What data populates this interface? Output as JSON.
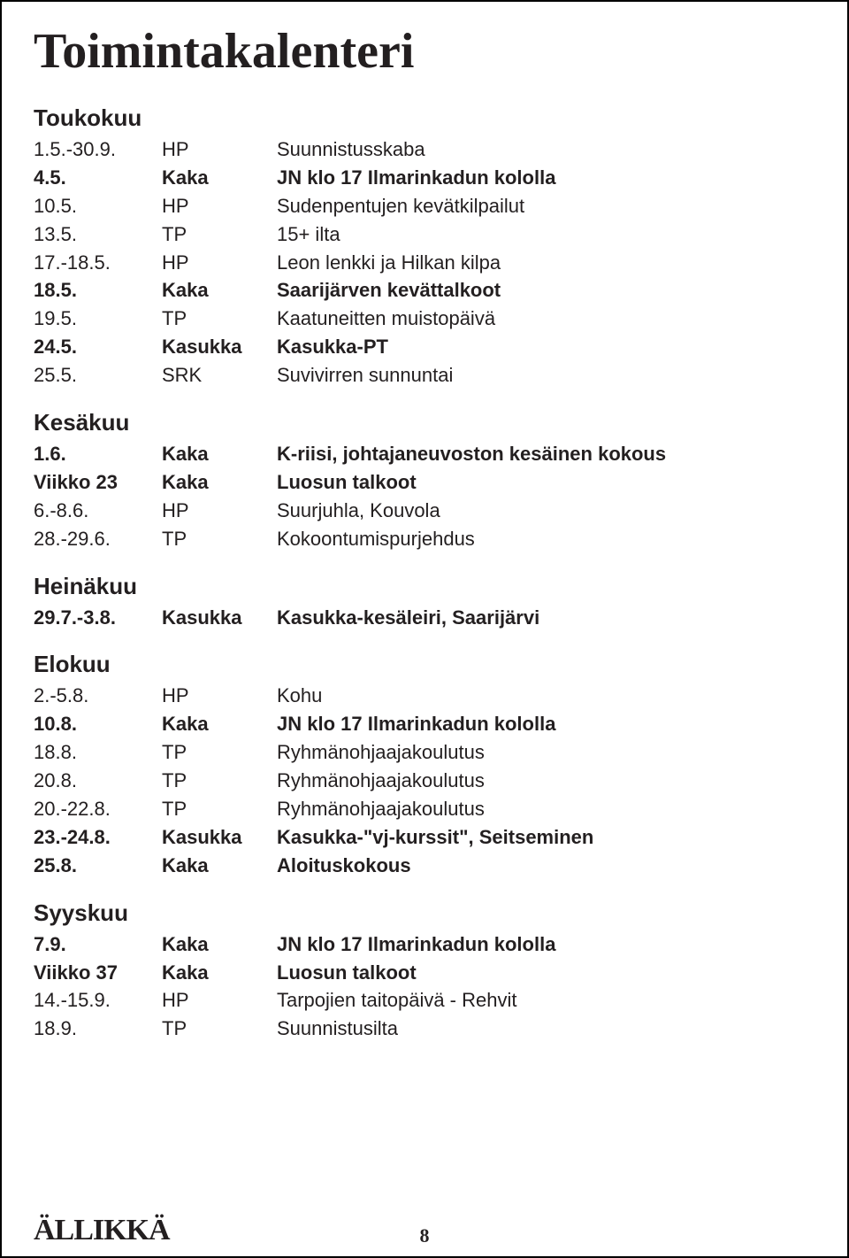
{
  "title": "Toimintakalenteri",
  "footer": {
    "brand": "ÄLLIKKÄ",
    "page": "8"
  },
  "sections": [
    {
      "month": "Toukokuu",
      "rows": [
        {
          "date": "1.5.-30.9.",
          "org": "HP",
          "desc": "Suunnistusskaba"
        },
        {
          "date": "4.5.",
          "org": "Kaka",
          "desc": "JN klo 17 Ilmarinkadun kololla",
          "bold": true
        },
        {
          "date": "10.5.",
          "org": "HP",
          "desc": "Sudenpentujen kevätkilpailut"
        },
        {
          "date": "13.5.",
          "org": "TP",
          "desc": "15+ ilta"
        },
        {
          "date": "17.-18.5.",
          "org": "HP",
          "desc": "Leon lenkki ja Hilkan kilpa"
        },
        {
          "date": "18.5.",
          "org": "Kaka",
          "desc": "Saarijärven kevättalkoot",
          "bold": true
        },
        {
          "date": "19.5.",
          "org": "TP",
          "desc": "Kaatuneitten muistopäivä"
        },
        {
          "date": "24.5.",
          "org": "Kasukka",
          "desc": "Kasukka-PT",
          "bold": true
        },
        {
          "date": "25.5.",
          "org": "SRK",
          "desc": "Suvivirren sunnuntai"
        }
      ]
    },
    {
      "month": "Kesäkuu",
      "rows": [
        {
          "date": "1.6.",
          "org": "Kaka",
          "desc": "K-riisi, johtajaneuvoston kesäinen kokous",
          "bold": true
        },
        {
          "date": "Viikko 23",
          "org": "Kaka",
          "desc": "Luosun talkoot",
          "bold": true
        },
        {
          "date": "6.-8.6.",
          "org": "HP",
          "desc": "Suurjuhla, Kouvola"
        },
        {
          "date": "28.-29.6.",
          "org": "TP",
          "desc": "Kokoontumispurjehdus"
        }
      ]
    },
    {
      "month": "Heinäkuu",
      "rows": [
        {
          "date": "29.7.-3.8.",
          "org": "Kasukka",
          "desc": "Kasukka-kesäleiri, Saarijärvi",
          "bold": true
        }
      ]
    },
    {
      "month": "Elokuu",
      "rows": [
        {
          "date": "2.-5.8.",
          "org": "HP",
          "desc": "Kohu"
        },
        {
          "date": "10.8.",
          "org": "Kaka",
          "desc": "JN klo 17 Ilmarinkadun kololla",
          "bold": true
        },
        {
          "date": "18.8.",
          "org": "TP",
          "desc": "Ryhmänohjaajakoulutus"
        },
        {
          "date": "20.8.",
          "org": "TP",
          "desc": "Ryhmänohjaajakoulutus"
        },
        {
          "date": "20.-22.8.",
          "org": "TP",
          "desc": "Ryhmänohjaajakoulutus"
        },
        {
          "date": "23.-24.8.",
          "org": "Kasukka",
          "desc": "Kasukka-\"vj-kurssit\", Seitseminen",
          "bold": true
        },
        {
          "date": "25.8.",
          "org": "Kaka",
          "desc": "Aloituskokous",
          "bold": true
        }
      ]
    },
    {
      "month": "Syyskuu",
      "rows": [
        {
          "date": "7.9.",
          "org": "Kaka",
          "desc": "JN klo 17 Ilmarinkadun kololla",
          "bold": true
        },
        {
          "date": "Viikko 37",
          "org": "Kaka",
          "desc": "Luosun talkoot",
          "bold": true
        },
        {
          "date": "14.-15.9.",
          "org": "HP",
          "desc": "Tarpojien taitopäivä - Rehvit"
        },
        {
          "date": "18.9.",
          "org": "TP",
          "desc": "Suunnistusilta"
        }
      ]
    }
  ]
}
